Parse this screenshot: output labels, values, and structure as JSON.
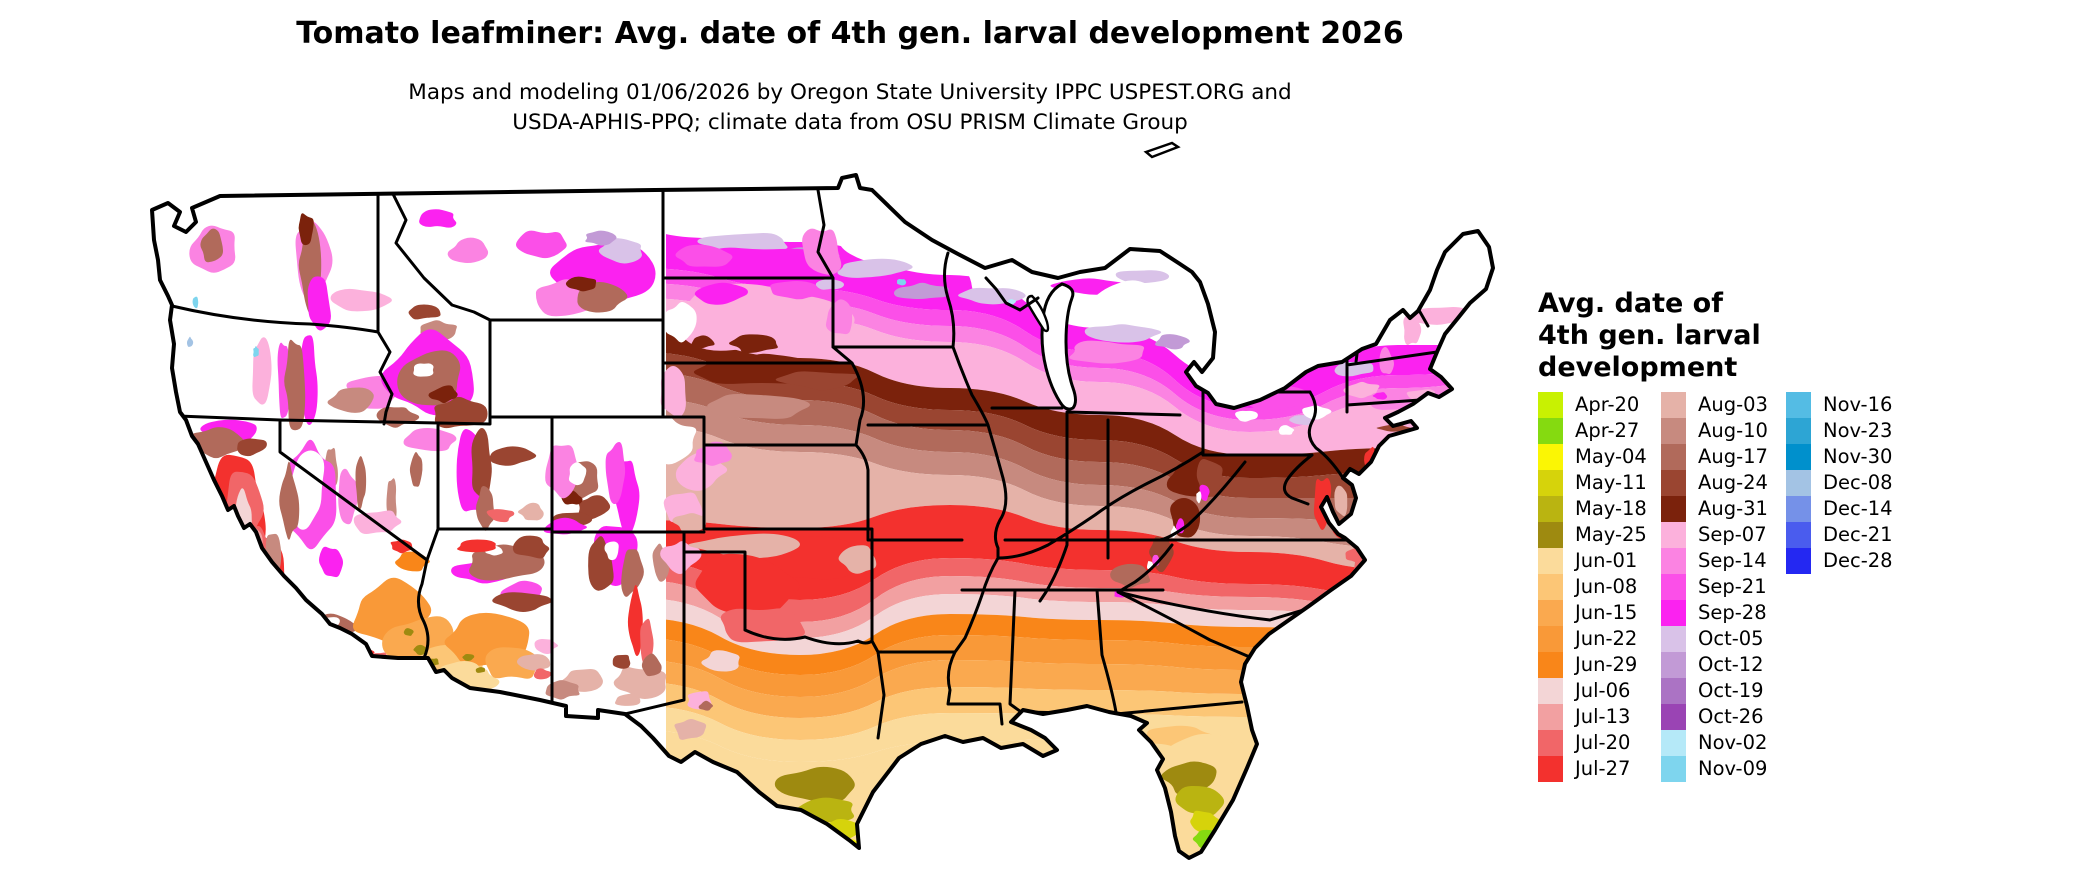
{
  "header": {
    "title": "Tomato leafminer: Avg. date of 4th gen. larval development 2026",
    "subtitle_line1": "Maps and modeling 01/06/2026 by Oregon State University IPPC USPEST.ORG and",
    "subtitle_line2": "USDA-APHIS-PPQ; climate data from OSU PRISM Climate Group"
  },
  "legend": {
    "title_lines": [
      "Avg. date of",
      "4th gen. larval",
      "development"
    ],
    "columns": [
      [
        {
          "label": "Apr-20",
          "color": "#c8f102"
        },
        {
          "label": "Apr-27",
          "color": "#85da10"
        },
        {
          "label": "May-04",
          "color": "#fbf604"
        },
        {
          "label": "May-11",
          "color": "#d6d30b"
        },
        {
          "label": "May-18",
          "color": "#bab411"
        },
        {
          "label": "May-25",
          "color": "#9e8a10"
        },
        {
          "label": "Jun-01",
          "color": "#fbdb9b"
        },
        {
          "label": "Jun-08",
          "color": "#fcc676"
        },
        {
          "label": "Jun-15",
          "color": "#faa94f"
        },
        {
          "label": "Jun-22",
          "color": "#f99938"
        },
        {
          "label": "Jun-29",
          "color": "#f98619"
        },
        {
          "label": "Jul-06",
          "color": "#f3d5d6"
        },
        {
          "label": "Jul-13",
          "color": "#f2a0a1"
        },
        {
          "label": "Jul-20",
          "color": "#f16668"
        },
        {
          "label": "Jul-27",
          "color": "#f3312e"
        }
      ],
      [
        {
          "label": "Aug-03",
          "color": "#e5b2a8"
        },
        {
          "label": "Aug-10",
          "color": "#c78a7f"
        },
        {
          "label": "Aug-17",
          "color": "#b16a5b"
        },
        {
          "label": "Aug-24",
          "color": "#9a4531"
        },
        {
          "label": "Aug-31",
          "color": "#7b220c"
        },
        {
          "label": "Sep-07",
          "color": "#fcb1dc"
        },
        {
          "label": "Sep-14",
          "color": "#fb83e2"
        },
        {
          "label": "Sep-21",
          "color": "#fb4fe8"
        },
        {
          "label": "Sep-28",
          "color": "#fb22f0"
        },
        {
          "label": "Oct-05",
          "color": "#d9c2e8"
        },
        {
          "label": "Oct-12",
          "color": "#c29ad6"
        },
        {
          "label": "Oct-19",
          "color": "#ab73c4"
        },
        {
          "label": "Oct-26",
          "color": "#9a44b4"
        },
        {
          "label": "Nov-02",
          "color": "#b5e9f8"
        },
        {
          "label": "Nov-09",
          "color": "#7ed5ee"
        }
      ],
      [
        {
          "label": "Nov-16",
          "color": "#54bce4"
        },
        {
          "label": "Nov-23",
          "color": "#2da5d4"
        },
        {
          "label": "Nov-30",
          "color": "#0090cc"
        },
        {
          "label": "Dec-08",
          "color": "#a3c3e4"
        },
        {
          "label": "Dec-14",
          "color": "#7591e8"
        },
        {
          "label": "Dec-21",
          "color": "#4a5cee"
        },
        {
          "label": "Dec-28",
          "color": "#2428f2"
        }
      ]
    ]
  },
  "map": {
    "background_color": "#ffffff",
    "border_color": "#000000",
    "no_data_color": "#ffffff"
  }
}
